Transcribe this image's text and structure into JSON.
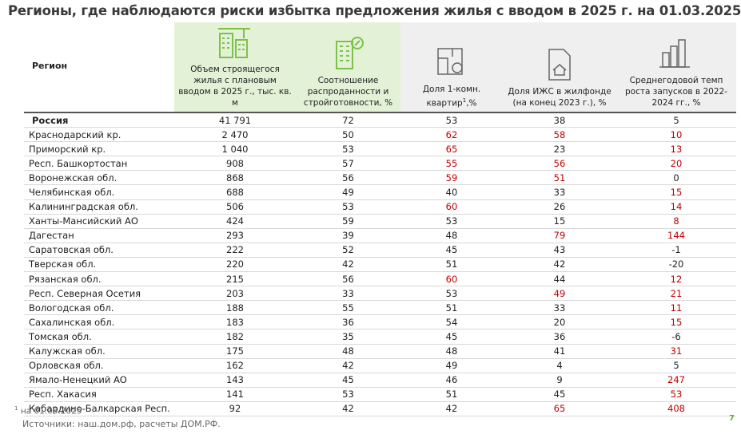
{
  "title": "Регионы, где наблюдаются риски избытка предложения жилья с вводом в 2025 г. на 01.03.2025",
  "table": {
    "header": {
      "region": "Регион",
      "columns": [
        "Объем строящегося жилья с плановым вводом в 2025 г., тыс. кв. м",
        "Соотношение распроданности и стройготовности, %",
        {
          "text": "Доля 1-комн. квартир",
          "sup": "1",
          "suffix": ",%"
        },
        "Доля ИЖС в жилфонде (на конец 2023 г.), %",
        "Среднегодовой темп роста запусков в 2022-2024 гг., %"
      ]
    },
    "highlight_color": "#c00000",
    "rows": [
      {
        "region": "Россия",
        "cells": [
          "41 791",
          "72",
          "53",
          "38",
          "5"
        ],
        "highlighted": []
      },
      {
        "region": "Краснодарский кр.",
        "cells": [
          "2 470",
          "50",
          "62",
          "58",
          "10"
        ],
        "highlighted": [
          2,
          3,
          4
        ]
      },
      {
        "region": "Приморский кр.",
        "cells": [
          "1 040",
          "53",
          "65",
          "23",
          "13"
        ],
        "highlighted": [
          2,
          4
        ]
      },
      {
        "region": "Респ. Башкортостан",
        "cells": [
          "908",
          "57",
          "55",
          "56",
          "20"
        ],
        "highlighted": [
          2,
          3,
          4
        ]
      },
      {
        "region": "Воронежская обл.",
        "cells": [
          "868",
          "56",
          "59",
          "51",
          "0"
        ],
        "highlighted": [
          2,
          3
        ]
      },
      {
        "region": "Челябинская обл.",
        "cells": [
          "688",
          "49",
          "40",
          "33",
          "15"
        ],
        "highlighted": [
          4
        ]
      },
      {
        "region": "Калининградская обл.",
        "cells": [
          "506",
          "53",
          "60",
          "26",
          "14"
        ],
        "highlighted": [
          2,
          4
        ]
      },
      {
        "region": "Ханты-Мансийский АО",
        "cells": [
          "424",
          "59",
          "53",
          "15",
          "8"
        ],
        "highlighted": [
          4
        ]
      },
      {
        "region": "Дагестан",
        "cells": [
          "293",
          "39",
          "48",
          "79",
          "144"
        ],
        "highlighted": [
          3,
          4
        ]
      },
      {
        "region": "Саратовская обл.",
        "cells": [
          "222",
          "52",
          "45",
          "43",
          "-1"
        ],
        "highlighted": []
      },
      {
        "region": "Тверская обл.",
        "cells": [
          "220",
          "42",
          "51",
          "42",
          "-20"
        ],
        "highlighted": []
      },
      {
        "region": "Рязанская обл.",
        "cells": [
          "215",
          "56",
          "60",
          "44",
          "12"
        ],
        "highlighted": [
          2,
          4
        ]
      },
      {
        "region": "Респ. Северная Осетия",
        "cells": [
          "203",
          "33",
          "53",
          "49",
          "21"
        ],
        "highlighted": [
          3,
          4
        ]
      },
      {
        "region": "Вологодская обл.",
        "cells": [
          "188",
          "55",
          "51",
          "33",
          "11"
        ],
        "highlighted": [
          4
        ]
      },
      {
        "region": "Сахалинская обл.",
        "cells": [
          "183",
          "36",
          "54",
          "20",
          "15"
        ],
        "highlighted": [
          4
        ]
      },
      {
        "region": "Томская обл.",
        "cells": [
          "182",
          "35",
          "45",
          "36",
          "-6"
        ],
        "highlighted": []
      },
      {
        "region": "Калужская обл.",
        "cells": [
          "175",
          "48",
          "48",
          "41",
          "31"
        ],
        "highlighted": [
          4
        ]
      },
      {
        "region": "Орловская обл.",
        "cells": [
          "162",
          "42",
          "49",
          "4",
          "5"
        ],
        "highlighted": []
      },
      {
        "region": "Ямало-Ненецкий АО",
        "cells": [
          "143",
          "45",
          "46",
          "9",
          "247"
        ],
        "highlighted": [
          4
        ]
      },
      {
        "region": "Респ. Хакасия",
        "cells": [
          "141",
          "53",
          "51",
          "45",
          "53"
        ],
        "highlighted": [
          4
        ]
      },
      {
        "region": "Кабардино-Балкарская Респ.",
        "cells": [
          "92",
          "42",
          "42",
          "65",
          "408"
        ],
        "highlighted": [
          3,
          4
        ]
      }
    ]
  },
  "footnote": {
    "mark": "1",
    "text": "на 01.03.2025"
  },
  "source": "Источники: наш.дом.рф, расчеты ДОМ.РФ.",
  "page_number": "7"
}
